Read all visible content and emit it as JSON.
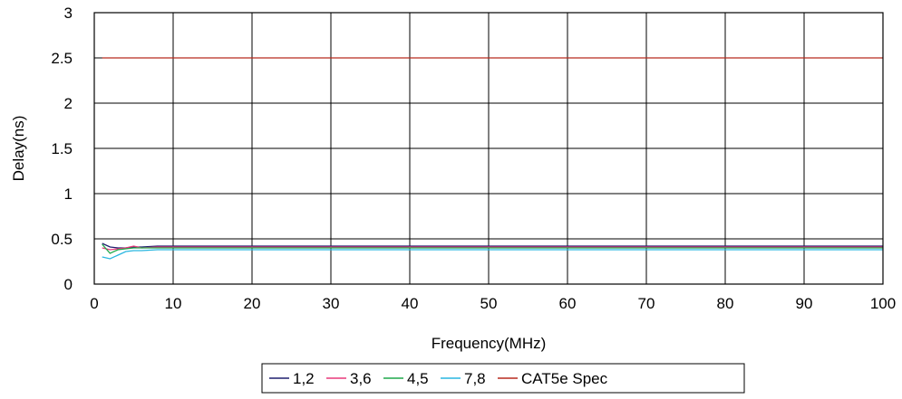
{
  "chart_data": {
    "type": "line",
    "title": "",
    "xlabel": "Frequency(MHz)",
    "ylabel": "Delay(ns)",
    "xlim": [
      0,
      100
    ],
    "ylim": [
      0,
      3
    ],
    "x_ticks": [
      "0",
      "10",
      "20",
      "30",
      "40",
      "50",
      "60",
      "70",
      "80",
      "90",
      "100"
    ],
    "y_ticks": [
      "0",
      "0.5",
      "1",
      "1.5",
      "2",
      "2.5",
      "3"
    ],
    "grid": true,
    "legend_position": "bottom",
    "x": [
      1,
      2,
      3,
      4,
      5,
      6,
      8,
      10,
      12,
      14,
      16,
      20,
      25,
      30,
      35,
      40,
      45,
      50,
      55,
      60,
      65,
      70,
      75,
      80,
      85,
      90,
      95,
      100
    ],
    "series": [
      {
        "name": "1,2",
        "color": "#1f1f6e",
        "values": [
          0.45,
          0.41,
          0.4,
          0.4,
          0.41,
          0.41,
          0.42,
          0.42,
          0.42,
          0.42,
          0.42,
          0.42,
          0.42,
          0.42,
          0.42,
          0.42,
          0.42,
          0.42,
          0.42,
          0.42,
          0.42,
          0.42,
          0.42,
          0.42,
          0.42,
          0.42,
          0.42,
          0.42
        ]
      },
      {
        "name": "3,6",
        "color": "#e8397a",
        "values": [
          0.4,
          0.38,
          0.39,
          0.4,
          0.42,
          0.4,
          0.41,
          0.41,
          0.41,
          0.41,
          0.41,
          0.41,
          0.41,
          0.41,
          0.41,
          0.41,
          0.41,
          0.41,
          0.41,
          0.41,
          0.41,
          0.41,
          0.41,
          0.41,
          0.41,
          0.41,
          0.41,
          0.41
        ]
      },
      {
        "name": "4,5",
        "color": "#1fa84a",
        "values": [
          0.44,
          0.34,
          0.38,
          0.39,
          0.4,
          0.4,
          0.4,
          0.4,
          0.4,
          0.4,
          0.4,
          0.4,
          0.4,
          0.4,
          0.4,
          0.4,
          0.4,
          0.4,
          0.4,
          0.4,
          0.4,
          0.4,
          0.4,
          0.4,
          0.4,
          0.4,
          0.4,
          0.4
        ]
      },
      {
        "name": "7,8",
        "color": "#29b6e0",
        "values": [
          0.3,
          0.28,
          0.32,
          0.36,
          0.37,
          0.37,
          0.38,
          0.38,
          0.38,
          0.38,
          0.38,
          0.38,
          0.38,
          0.38,
          0.38,
          0.38,
          0.38,
          0.38,
          0.38,
          0.38,
          0.38,
          0.38,
          0.38,
          0.38,
          0.38,
          0.38,
          0.38,
          0.38
        ]
      },
      {
        "name": "CAT5e Spec",
        "color": "#b82a1e",
        "values": [
          2.5,
          2.5,
          2.5,
          2.5,
          2.5,
          2.5,
          2.5,
          2.5,
          2.5,
          2.5,
          2.5,
          2.5,
          2.5,
          2.5,
          2.5,
          2.5,
          2.5,
          2.5,
          2.5,
          2.5,
          2.5,
          2.5,
          2.5,
          2.5,
          2.5,
          2.5,
          2.5,
          2.5
        ]
      }
    ]
  }
}
